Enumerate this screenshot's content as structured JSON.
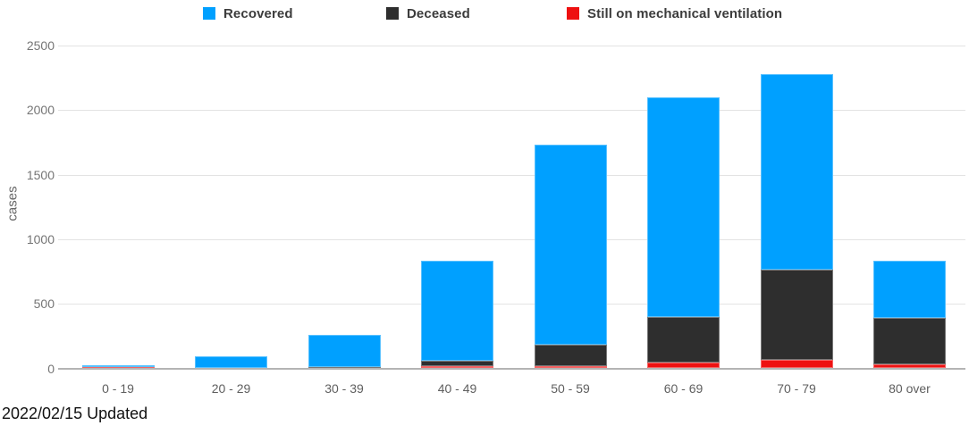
{
  "chart_data": {
    "type": "bar",
    "stacked": true,
    "title": "",
    "xlabel": "",
    "ylabel": "cases",
    "categories": [
      "0 - 19",
      "20 - 29",
      "30 - 39",
      "40 - 49",
      "50 - 59",
      "60 - 69",
      "70 - 79",
      "80 over"
    ],
    "series": [
      {
        "name": "Recovered",
        "color": "#00A0FF",
        "values": [
          20,
          95,
          247,
          770,
          1548,
          1695,
          1514,
          442
        ]
      },
      {
        "name": "Deceased",
        "color": "#2E2E2E",
        "values": [
          0,
          0,
          13,
          46,
          168,
          355,
          700,
          362
        ]
      },
      {
        "name": "Still on mechanical ventilation",
        "color": "#EE1111",
        "values": [
          7,
          0,
          0,
          14,
          14,
          45,
          66,
          29
        ]
      }
    ],
    "stack_bottom_to_top": [
      "Still on mechanical ventilation",
      "Deceased",
      "Recovered"
    ],
    "totals": [
      27,
      95,
      260,
      830,
      1730,
      2095,
      2280,
      833
    ],
    "ylim": [
      0,
      2500
    ],
    "yticks": [
      0,
      500,
      1000,
      1500,
      2000,
      2500
    ],
    "grid": "horizontal",
    "legend_position": "top"
  },
  "footer": {
    "updated_text": "2022/02/15 Updated"
  }
}
